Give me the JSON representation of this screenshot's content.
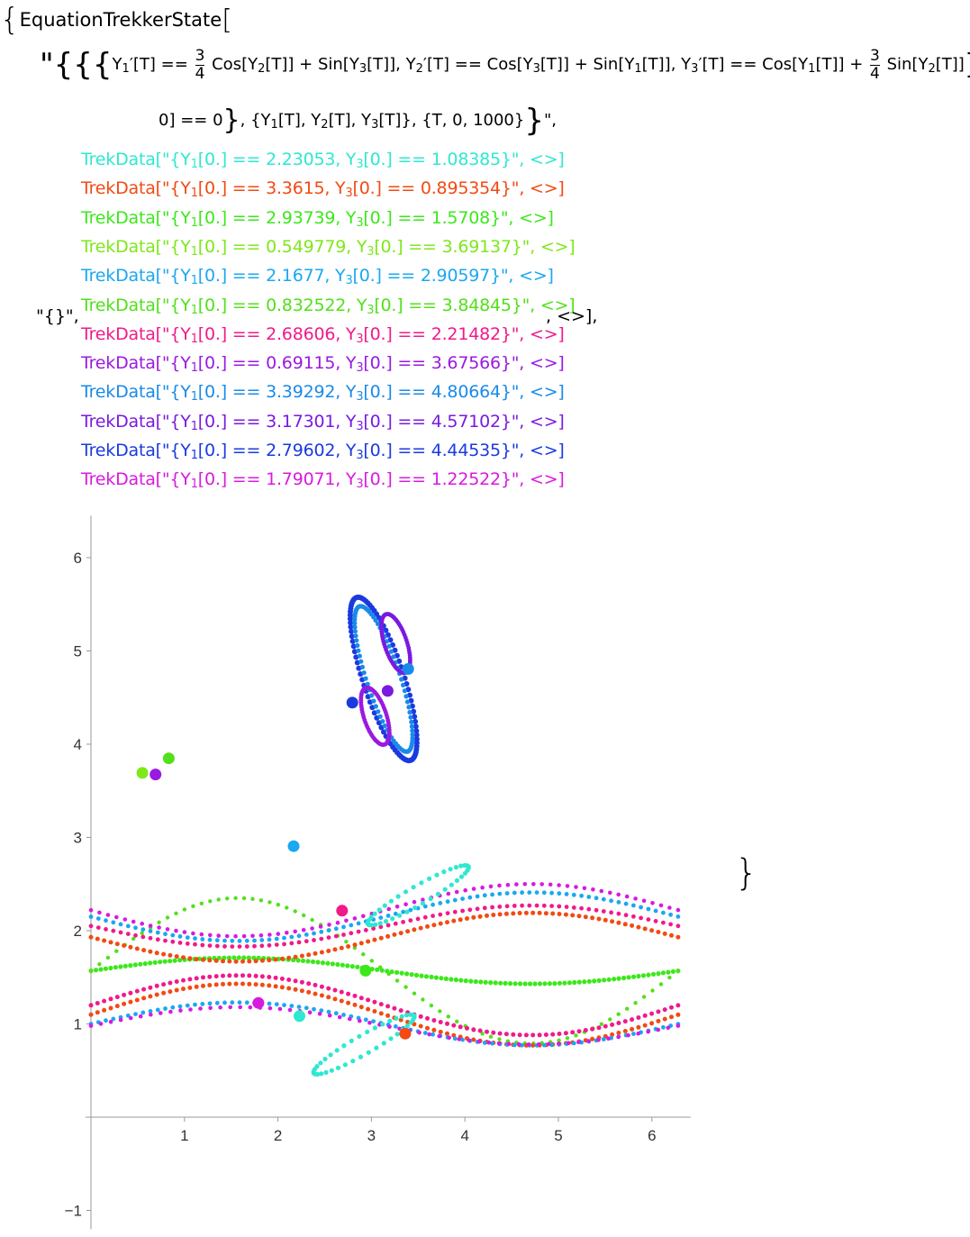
{
  "expression": {
    "head": "EquationTrekkerState",
    "eq_line1_pre": "\"{{{Y",
    "eq_y1p": "′[T] == ",
    "frac_num": "3",
    "frac_den": "4",
    "eq_part1": " Cos[Y",
    "eq_part2": "[T]] + Sin[Y",
    "eq_part3": "[T]], Y",
    "eq_part4": "′[T] == Cos[Y",
    "eq_part5": "[T]] + Sin[Y",
    "eq_part6": "[T]], Y",
    "eq_part7": "′[T] == Cos[Y",
    "eq_part8": "[T]] + ",
    "eq_part9": " Sin[Y",
    "eq_part10": "[T]]",
    "eq_part11": ", Y",
    "eq_part12": "[",
    "eq_line2": "0] == 0",
    "eq_line2b": ", {Y",
    "eq_line2c": "[T], Y",
    "eq_line2d": "[T], Y",
    "eq_line2e": "[T]}, {T, 0, 1000}",
    "eq_line2f": "\",",
    "empty_label": "\"{}\",",
    "tail": ", <>],",
    "closing_brace": "}"
  },
  "treks": [
    {
      "y1": "2.23053",
      "y3": "1.08385",
      "color": "#2ee8d0"
    },
    {
      "y1": "3.3615",
      "y3": "0.895354",
      "color": "#f24a14"
    },
    {
      "y1": "2.93739",
      "y3": "1.5708",
      "color": "#3be81a"
    },
    {
      "y1": "0.549779",
      "y3": "3.69137",
      "color": "#7ee81a"
    },
    {
      "y1": "2.1677",
      "y3": "2.90597",
      "color": "#1aa8f0"
    },
    {
      "y1": "0.832522",
      "y3": "3.84845",
      "color": "#52e01a"
    },
    {
      "y1": "2.68606",
      "y3": "2.21482",
      "color": "#f01a8a"
    },
    {
      "y1": "0.69115",
      "y3": "3.67566",
      "color": "#9a1ae0"
    },
    {
      "y1": "3.39292",
      "y3": "4.80664",
      "color": "#1a8ae8"
    },
    {
      "y1": "3.17301",
      "y3": "4.57102",
      "color": "#7a1ae0"
    },
    {
      "y1": "2.79602",
      "y3": "4.44535",
      "color": "#1a3ae0"
    },
    {
      "y1": "1.79071",
      "y3": "1.22522",
      "color": "#d81ae0"
    }
  ],
  "trek_text": {
    "prefix": "TrekData[\"{Y",
    "mid1": "[0.] == ",
    "mid2": ", Y",
    "mid3": "[0.] == ",
    "suffix": "}\",  <>]",
    "sub1": "1",
    "sub3": "3"
  },
  "chart_data": {
    "type": "scatter",
    "xlim": [
      0,
      6.28
    ],
    "ylim": [
      -1.2,
      6.45
    ],
    "x_ticks": [
      1,
      2,
      3,
      4,
      5,
      6
    ],
    "y_ticks": [
      -1,
      1,
      2,
      3,
      4,
      5,
      6
    ],
    "x_tick_labels": [
      "1",
      "2",
      "3",
      "4",
      "5",
      "6"
    ],
    "y_tick_labels": [
      "−1",
      "1",
      "2",
      "3",
      "4",
      "5",
      "6"
    ],
    "initial_points": [
      {
        "x": 2.23053,
        "y": 1.08385,
        "color": "#2ee8d0"
      },
      {
        "x": 3.3615,
        "y": 0.895354,
        "color": "#f24a14"
      },
      {
        "x": 2.93739,
        "y": 1.5708,
        "color": "#3be81a"
      },
      {
        "x": 0.549779,
        "y": 3.69137,
        "color": "#7ee81a"
      },
      {
        "x": 2.1677,
        "y": 2.90597,
        "color": "#1aa8f0"
      },
      {
        "x": 0.832522,
        "y": 3.84845,
        "color": "#52e01a"
      },
      {
        "x": 2.68606,
        "y": 2.21482,
        "color": "#f01a8a"
      },
      {
        "x": 0.69115,
        "y": 3.67566,
        "color": "#9a1ae0"
      },
      {
        "x": 3.39292,
        "y": 4.80664,
        "color": "#1a8ae8"
      },
      {
        "x": 3.17301,
        "y": 4.57102,
        "color": "#7a1ae0"
      },
      {
        "x": 2.79602,
        "y": 4.44535,
        "color": "#1a3ae0"
      },
      {
        "x": 1.79071,
        "y": 1.22522,
        "color": "#d81ae0"
      }
    ],
    "curves": [
      {
        "kind": "wave",
        "base": 1.57,
        "amp": 0.14,
        "color": "#3be81a",
        "n": 120,
        "dot": 2.6
      },
      {
        "kind": "wave",
        "base": 1.57,
        "amp": 0.78,
        "color": "#52e01a",
        "n": 70,
        "dot": 2.2
      },
      {
        "kind": "wave",
        "base": 1.2,
        "amp": 0.32,
        "color": "#f01a8a",
        "n": 90,
        "dot": 2.5
      },
      {
        "kind": "wave",
        "base": 1.1,
        "amp": 0.33,
        "color": "#f24a14",
        "n": 90,
        "dot": 2.5
      },
      {
        "kind": "wave",
        "base": 1.0,
        "amp": 0.23,
        "color": "#1aa8f0",
        "n": 80,
        "dot": 2.4
      },
      {
        "kind": "wave",
        "base": 0.98,
        "amp": 0.2,
        "color": "#d81ae0",
        "n": 60,
        "dot": 2.3
      },
      {
        "kind": "wave",
        "base": 1.93,
        "amp": -0.26,
        "color": "#f24a14",
        "n": 90,
        "dot": 2.5
      },
      {
        "kind": "wave",
        "base": 2.05,
        "amp": -0.22,
        "color": "#f01a8a",
        "n": 80,
        "dot": 2.4
      },
      {
        "kind": "wave",
        "base": 2.15,
        "amp": -0.26,
        "color": "#1aa8f0",
        "n": 80,
        "dot": 2.4
      },
      {
        "kind": "wave",
        "base": 2.22,
        "amp": -0.28,
        "color": "#d81ae0",
        "n": 70,
        "dot": 2.3
      },
      {
        "kind": "ellipse",
        "cx": 3.13,
        "cy": 4.7,
        "rx": 0.22,
        "ry": 0.92,
        "tilt": 0.32,
        "color": "#1a3ae0",
        "n": 90,
        "dot": 3.0
      },
      {
        "kind": "ellipse",
        "cx": 3.13,
        "cy": 4.7,
        "rx": 0.18,
        "ry": 0.82,
        "tilt": 0.32,
        "color": "#1a8ae8",
        "n": 80,
        "dot": 2.6
      },
      {
        "kind": "ellipse",
        "cx": 3.26,
        "cy": 5.08,
        "rx": 0.12,
        "ry": 0.33,
        "tilt": 0.32,
        "color": "#7a1ae0",
        "n": 70,
        "dot": 2.4
      },
      {
        "kind": "ellipse",
        "cx": 3.04,
        "cy": 4.3,
        "rx": 0.12,
        "ry": 0.32,
        "tilt": 0.32,
        "color": "#9a1ae0",
        "n": 70,
        "dot": 2.4
      },
      {
        "kind": "ellipse",
        "cx": 3.5,
        "cy": 2.38,
        "rx": 0.1,
        "ry": 0.62,
        "tilt": -1.05,
        "color": "#2ee8d0",
        "n": 40,
        "dot": 2.6
      },
      {
        "kind": "ellipse",
        "cx": 2.92,
        "cy": 0.78,
        "rx": 0.1,
        "ry": 0.62,
        "tilt": -1.05,
        "color": "#2ee8d0",
        "n": 40,
        "dot": 2.6
      }
    ]
  }
}
